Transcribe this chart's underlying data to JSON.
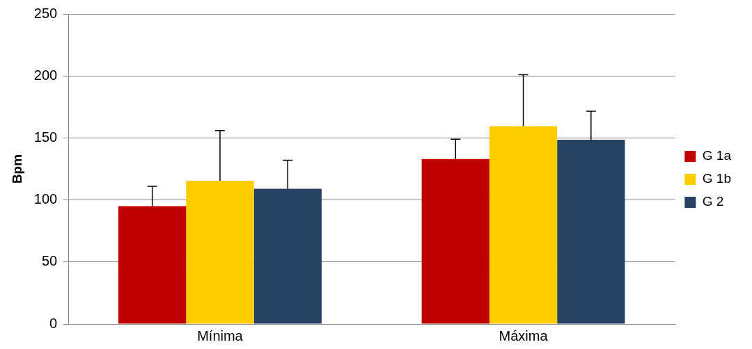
{
  "chart_data": {
    "type": "bar",
    "ylabel": "Bpm",
    "categories": [
      "Mínima",
      "Máxima"
    ],
    "series": [
      {
        "name": "G 1a",
        "color": "#c00000",
        "values": [
          95,
          133
        ],
        "errors": [
          [
            95,
            111
          ],
          [
            133,
            149
          ]
        ]
      },
      {
        "name": "G 1b",
        "color": "#ffcc00",
        "values": [
          115.5,
          159.5
        ],
        "errors": [
          [
            115.5,
            156
          ],
          [
            159.5,
            201
          ]
        ]
      },
      {
        "name": "G 2",
        "color": "#264361",
        "values": [
          109,
          148.5
        ],
        "errors": [
          [
            109,
            132
          ],
          [
            148.5,
            171.5
          ]
        ]
      }
    ],
    "ylim": [
      0,
      250
    ],
    "yticks": [
      0,
      50,
      100,
      150,
      200,
      250
    ],
    "grid": "y",
    "legend": "right"
  }
}
